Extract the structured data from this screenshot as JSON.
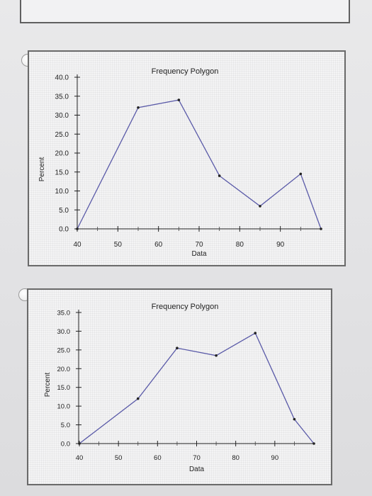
{
  "chart_data": [
    {
      "type": "line",
      "title": "Frequency Polygon",
      "xlabel": "Data",
      "ylabel": "Percent",
      "x_ticks": [
        "40",
        "50",
        "60",
        "70",
        "80",
        "90"
      ],
      "y_ticks": [
        "0.0",
        "5.0",
        "10.0",
        "15.0",
        "20.0",
        "25.0",
        "30.0",
        "35.0",
        "40.0"
      ],
      "xlim": [
        40,
        100
      ],
      "ylim": [
        0,
        40
      ],
      "grid": false,
      "x": [
        40,
        55,
        65,
        75,
        85,
        95,
        100
      ],
      "y": [
        0,
        32,
        34,
        14,
        6,
        14.5,
        0
      ],
      "line_color": "#5a5aa8"
    },
    {
      "type": "line",
      "title": "Frequency Polygon",
      "xlabel": "Data",
      "ylabel": "Percent",
      "x_ticks": [
        "40",
        "50",
        "60",
        "70",
        "80",
        "90"
      ],
      "y_ticks": [
        "0.0",
        "5.0",
        "10.0",
        "15.0",
        "20.0",
        "25.0",
        "30.0",
        "35.0"
      ],
      "xlim": [
        40,
        100
      ],
      "ylim": [
        0,
        35
      ],
      "grid": false,
      "x": [
        40,
        55,
        65,
        75,
        85,
        95,
        100
      ],
      "y": [
        0,
        12,
        25.5,
        23.5,
        29.5,
        6.5,
        0
      ],
      "line_color": "#5a5aa8"
    }
  ]
}
